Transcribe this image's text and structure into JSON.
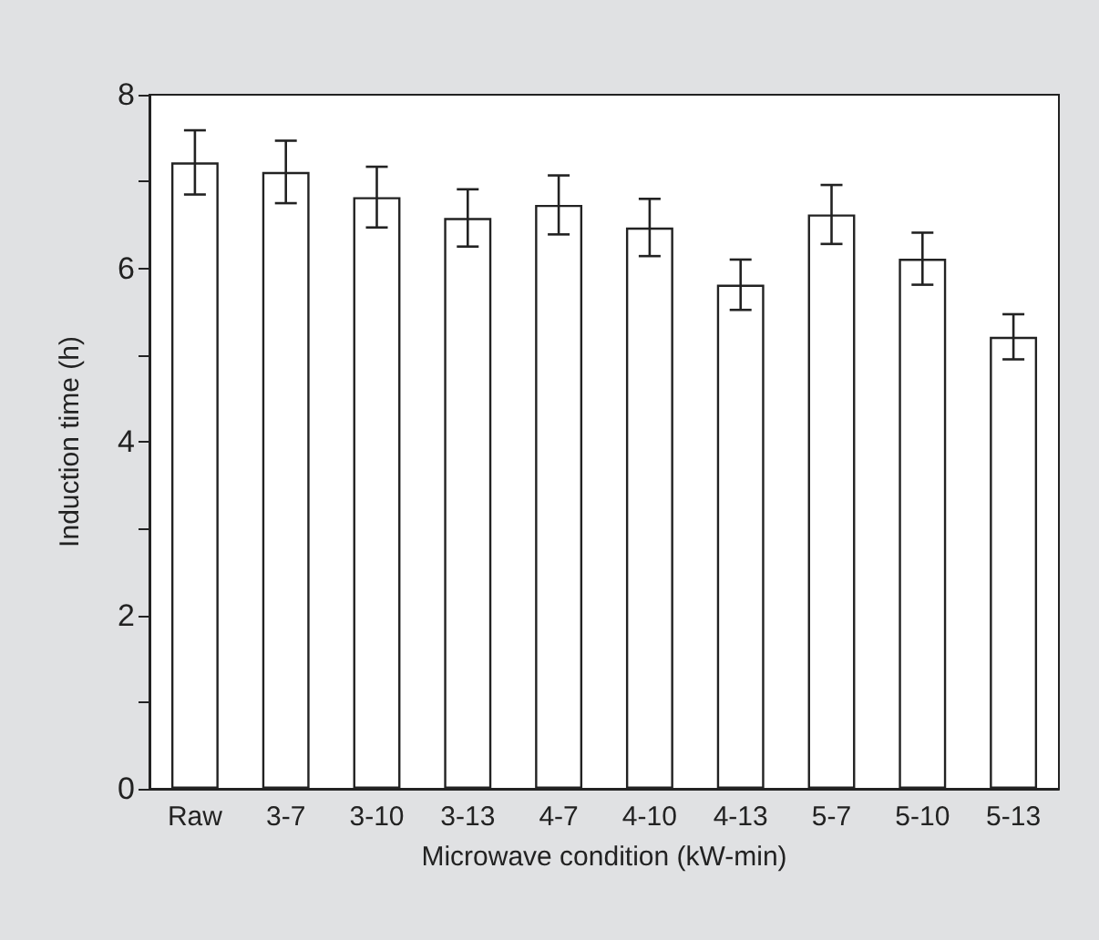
{
  "chart_data": {
    "type": "bar",
    "xlabel": "Microwave condition (kW-min)",
    "ylabel": "Induction time (h)",
    "categories": [
      "Raw",
      "3-7",
      "3-10",
      "3-13",
      "4-7",
      "4-10",
      "4-13",
      "5-7",
      "5-10",
      "5-13"
    ],
    "values": [
      7.22,
      7.11,
      6.82,
      6.58,
      6.73,
      6.47,
      5.81,
      6.62,
      6.11,
      5.21
    ],
    "errors": [
      0.37,
      0.36,
      0.35,
      0.33,
      0.34,
      0.33,
      0.29,
      0.34,
      0.3,
      0.26
    ],
    "color": "#ffffff",
    "ylim": [
      0,
      8
    ],
    "yticks": [
      0,
      {
        "value": 1,
        "label": null
      },
      2,
      {
        "value": 3,
        "label": null
      },
      4,
      {
        "value": 5,
        "label": null
      },
      6,
      {
        "value": 7,
        "label": null
      },
      8
    ],
    "grid": false
  }
}
